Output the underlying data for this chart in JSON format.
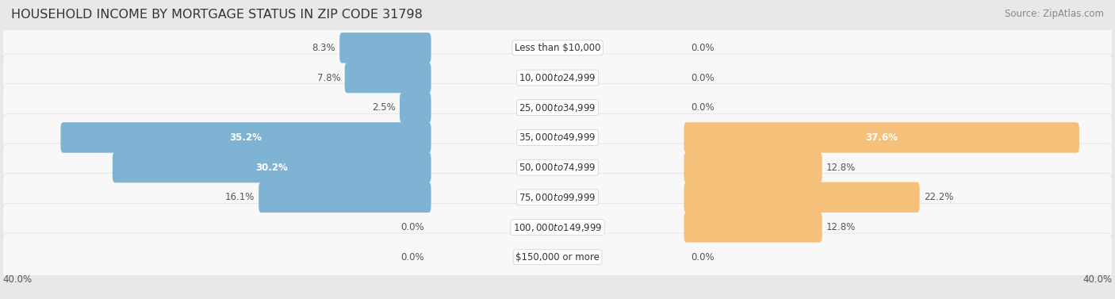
{
  "title": "HOUSEHOLD INCOME BY MORTGAGE STATUS IN ZIP CODE 31798",
  "source": "Source: ZipAtlas.com",
  "categories": [
    "Less than $10,000",
    "$10,000 to $24,999",
    "$25,000 to $34,999",
    "$35,000 to $49,999",
    "$50,000 to $74,999",
    "$75,000 to $99,999",
    "$100,000 to $149,999",
    "$150,000 or more"
  ],
  "without_mortgage": [
    8.3,
    7.8,
    2.5,
    35.2,
    30.2,
    16.1,
    0.0,
    0.0
  ],
  "with_mortgage": [
    0.0,
    0.0,
    0.0,
    37.6,
    12.8,
    22.2,
    12.8,
    0.0
  ],
  "blue_color": "#7fb3d3",
  "orange_color": "#f5c07a",
  "bg_color": "#e8e8e8",
  "row_bg_light": "#f7f7f7",
  "row_bg_dark": "#efefef",
  "axis_limit": 40.0,
  "title_fontsize": 11.5,
  "label_fontsize": 8.5,
  "tick_fontsize": 8.5,
  "source_fontsize": 8.5,
  "legend_fontsize": 8.5,
  "bar_height": 0.62
}
